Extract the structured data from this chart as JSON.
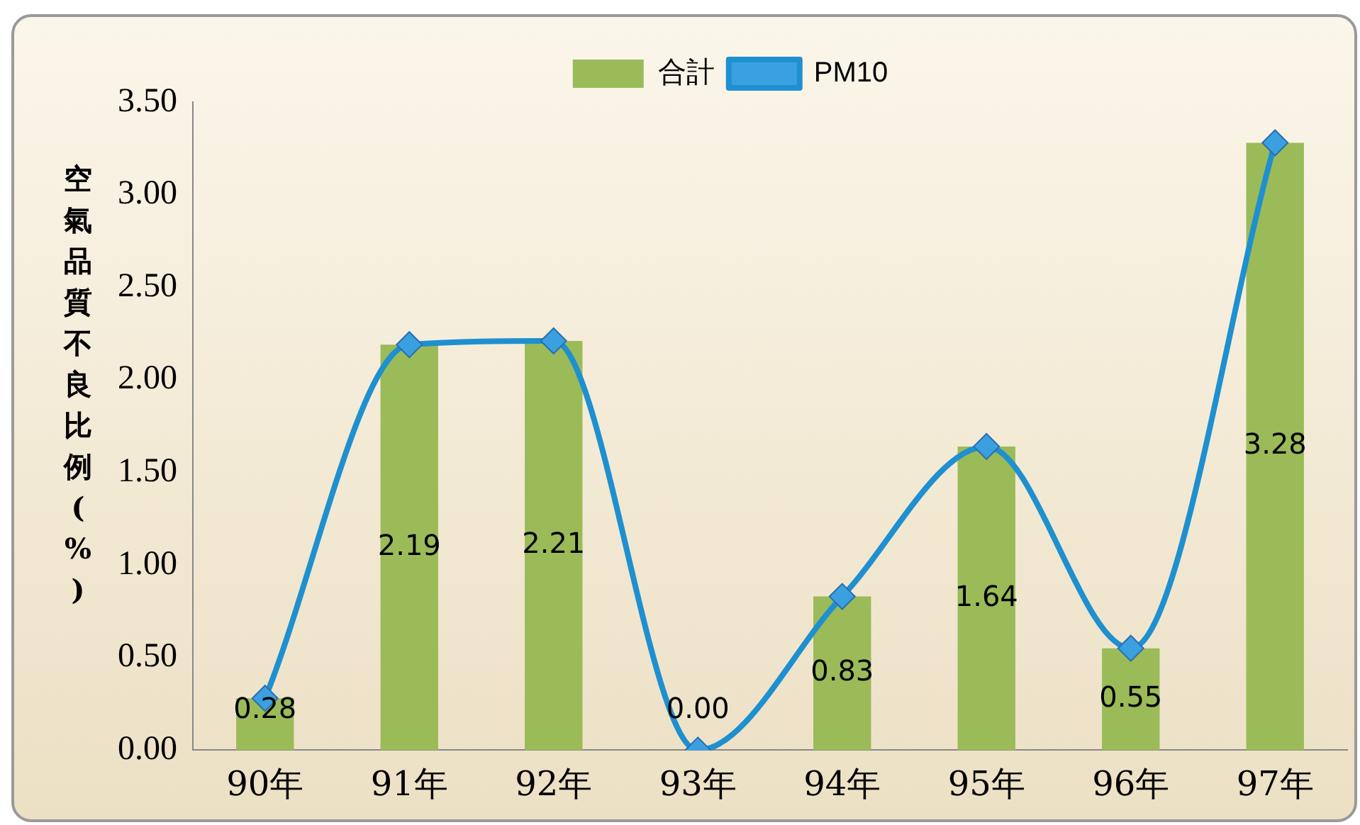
{
  "chart_data": {
    "type": "bar",
    "ylabel": "空氣品質不良比例(%)",
    "categories": [
      "90年",
      "91年",
      "92年",
      "93年",
      "94年",
      "95年",
      "96年",
      "97年"
    ],
    "series": [
      {
        "name": "合計",
        "color": "#9bbb59",
        "values": [
          0.28,
          2.19,
          2.21,
          0.0,
          0.83,
          1.64,
          0.55,
          3.28
        ],
        "value_labels": [
          "0.28",
          "2.19",
          "2.21",
          "0.00",
          "0.83",
          "1.64",
          "0.55",
          "3.28"
        ]
      },
      {
        "name": "PM10",
        "type": "line",
        "color": "#1e90d0",
        "marker": "diamond",
        "values": [
          0.28,
          2.19,
          2.21,
          0.0,
          0.83,
          1.64,
          0.55,
          3.28
        ]
      }
    ],
    "ylim": [
      0,
      3.5
    ],
    "yticks": [
      {
        "value": 0,
        "label": "0.00"
      },
      {
        "value": 0.5,
        "label": "0.50"
      },
      {
        "value": 1,
        "label": "1.00"
      },
      {
        "value": 1.5,
        "label": "1.50"
      },
      {
        "value": 2,
        "label": "2.00"
      },
      {
        "value": 2.5,
        "label": "2.50"
      },
      {
        "value": 3,
        "label": "3.00"
      },
      {
        "value": 3.5,
        "label": "3.50"
      }
    ],
    "grid": false,
    "legend": "top"
  }
}
